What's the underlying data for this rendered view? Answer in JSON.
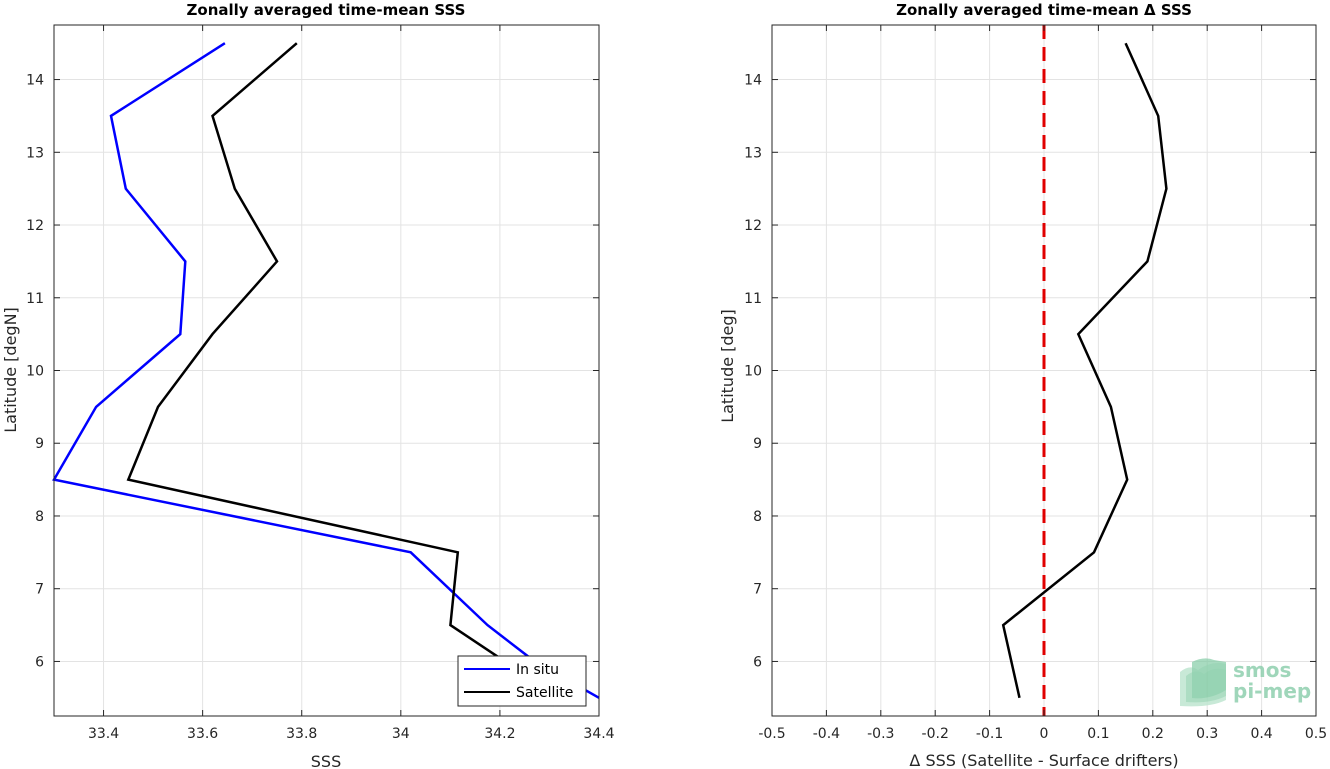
{
  "chart_data": [
    {
      "type": "line",
      "title": "Zonally averaged time-mean SSS",
      "xlabel": "SSS",
      "ylabel": "Latitude [degN]",
      "xlim": [
        33.3,
        34.4
      ],
      "ylim": [
        5.25,
        14.75
      ],
      "xticks": [
        33.4,
        33.6,
        33.8,
        34,
        34.2,
        34.4
      ],
      "xtick_labels": [
        "33.4",
        "33.6",
        "33.8",
        "34",
        "34.2",
        "34.4"
      ],
      "yticks": [
        6,
        7,
        8,
        9,
        10,
        11,
        12,
        13,
        14
      ],
      "ytick_labels": [
        "6",
        "7",
        "8",
        "9",
        "10",
        "11",
        "12",
        "13",
        "14"
      ],
      "grid": true,
      "legend_position": "bottom-right",
      "series": [
        {
          "name": "In situ",
          "color": "#0000ff",
          "points": [
            [
              34.4,
              5.5
            ],
            [
              34.27,
              6.0
            ],
            [
              34.175,
              6.5
            ],
            [
              34.02,
              7.5
            ],
            [
              33.3,
              8.5
            ],
            [
              33.385,
              9.5
            ],
            [
              33.555,
              10.5
            ],
            [
              33.565,
              11.5
            ],
            [
              33.445,
              12.5
            ],
            [
              33.415,
              13.5
            ],
            [
              33.645,
              14.5
            ]
          ]
        },
        {
          "name": "Satellite",
          "color": "#000000",
          "points": [
            [
              34.21,
              6.0
            ],
            [
              34.1,
              6.5
            ],
            [
              34.115,
              7.5
            ],
            [
              33.45,
              8.5
            ],
            [
              33.51,
              9.5
            ],
            [
              33.62,
              10.5
            ],
            [
              33.75,
              11.5
            ],
            [
              33.665,
              12.5
            ],
            [
              33.62,
              13.5
            ],
            [
              33.79,
              14.5
            ]
          ]
        }
      ]
    },
    {
      "type": "line",
      "title": "Zonally averaged time-mean Δ SSS",
      "xlabel": "Δ SSS (Satellite - Surface drifters)",
      "ylabel": "Latitude [deg]",
      "xlim": [
        -0.5,
        0.5
      ],
      "ylim": [
        5.25,
        14.75
      ],
      "xticks": [
        -0.5,
        -0.4,
        -0.3,
        -0.2,
        -0.1,
        0,
        0.1,
        0.2,
        0.3,
        0.4,
        0.5
      ],
      "xtick_labels": [
        "-0.5",
        "-0.4",
        "-0.3",
        "-0.2",
        "-0.1",
        "0",
        "0.1",
        "0.2",
        "0.3",
        "0.4",
        "0.5"
      ],
      "yticks": [
        6,
        7,
        8,
        9,
        10,
        11,
        12,
        13,
        14
      ],
      "ytick_labels": [
        "6",
        "7",
        "8",
        "9",
        "10",
        "11",
        "12",
        "13",
        "14"
      ],
      "grid": true,
      "reference_line": {
        "x": 0,
        "color": "#e00000",
        "style": "dashed"
      },
      "series": [
        {
          "name": "",
          "color": "#000000",
          "points": [
            [
              -0.045,
              5.5
            ],
            [
              -0.075,
              6.5
            ],
            [
              0.092,
              7.5
            ],
            [
              0.153,
              8.5
            ],
            [
              0.123,
              9.5
            ],
            [
              0.063,
              10.5
            ],
            [
              0.19,
              11.5
            ],
            [
              0.225,
              12.5
            ],
            [
              0.21,
              13.5
            ],
            [
              0.15,
              14.5
            ]
          ]
        }
      ]
    }
  ],
  "logo": {
    "line1": "smos",
    "line2": "pi-mep"
  }
}
